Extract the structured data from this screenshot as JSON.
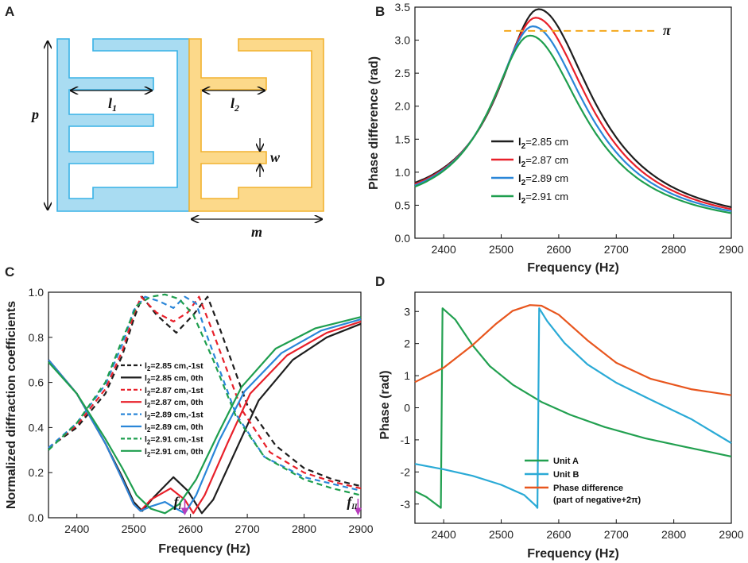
{
  "panel_labels": {
    "a": "A",
    "b": "B",
    "c": "C",
    "d": "D"
  },
  "colors": {
    "black": "#1e1e1e",
    "red": "#e8202a",
    "blue": "#2a86d8",
    "green": "#1e9e4e",
    "unitA": "#22a050",
    "unitB": "#2aaad6",
    "phase": "#e8561e",
    "pi_line": "#f4a81d",
    "cellA_fill": "#a9dcf2",
    "cellA_stroke": "#38b2e6",
    "cellB_fill": "#fcd98a",
    "cellB_stroke": "#f2b230",
    "marker": "#b83dbd"
  },
  "diagram": {
    "labels": {
      "p": "p",
      "l1": "l",
      "l1_sub": "1",
      "l2": "l",
      "l2_sub": "2",
      "w": "w",
      "m": "m"
    }
  },
  "chart_data": [
    {
      "id": "B",
      "type": "line",
      "xlabel": "Frequency (Hz)",
      "ylabel": "Phase difference (rad)",
      "xlim": [
        2350,
        2900
      ],
      "ylim": [
        0,
        3.5
      ],
      "xticks": [
        "2400",
        "2500",
        "2600",
        "2700",
        "2800",
        "2900"
      ],
      "yticks": [
        "0.0",
        "0.5",
        "1.0",
        "1.5",
        "2.0",
        "2.5",
        "3.0",
        "3.5"
      ],
      "reference_line": {
        "label": "π",
        "y": 3.14,
        "x_range": [
          2505,
          2770
        ]
      },
      "legend": {
        "position": "center-left"
      },
      "series": [
        {
          "name": "l",
          "sub": "2",
          "rest": "=2.85 cm",
          "color": "#1e1e1e",
          "peak_x": 2565,
          "peak_y": 3.47,
          "start_y": 0.84,
          "end_y": 0.47
        },
        {
          "name": "l",
          "sub": "2",
          "rest": "=2.87 cm",
          "color": "#e8202a",
          "peak_x": 2560,
          "peak_y": 3.34,
          "start_y": 0.82,
          "end_y": 0.44
        },
        {
          "name": "l",
          "sub": "2",
          "rest": "=2.89 cm",
          "color": "#2a86d8",
          "peak_x": 2555,
          "peak_y": 3.21,
          "start_y": 0.8,
          "end_y": 0.41
        },
        {
          "name": "l",
          "sub": "2",
          "rest": "=2.91 cm",
          "color": "#1e9e4e",
          "peak_x": 2550,
          "peak_y": 3.07,
          "start_y": 0.78,
          "end_y": 0.38
        }
      ]
    },
    {
      "id": "C",
      "type": "line",
      "xlabel": "Frequency (Hz)",
      "ylabel": "Normalized diffraction coefficients",
      "xlim": [
        2350,
        2900
      ],
      "ylim": [
        0,
        1.0
      ],
      "xticks": [
        "2400",
        "2500",
        "2600",
        "2700",
        "2800",
        "2900"
      ],
      "yticks": [
        "0.0",
        "0.2",
        "0.4",
        "0.6",
        "0.8",
        "1.0"
      ],
      "legend": {
        "position": "center-left"
      },
      "annotations": [
        {
          "text": "f",
          "sub": "I",
          "x": 2590
        },
        {
          "text": "f",
          "sub": "II",
          "x": 2895
        }
      ],
      "series": [
        {
          "label": "l",
          "sub": "2",
          "rest": "=2.85 cm,-1st",
          "color": "#1e1e1e",
          "dashed": true,
          "points": [
            [
              2350,
              0.31
            ],
            [
              2400,
              0.4
            ],
            [
              2450,
              0.55
            ],
            [
              2480,
              0.72
            ],
            [
              2500,
              0.88
            ],
            [
              2515,
              0.98
            ],
            [
              2540,
              0.9
            ],
            [
              2575,
              0.82
            ],
            [
              2605,
              0.9
            ],
            [
              2630,
              0.98
            ],
            [
              2650,
              0.85
            ],
            [
              2700,
              0.5
            ],
            [
              2750,
              0.32
            ],
            [
              2800,
              0.22
            ],
            [
              2850,
              0.17
            ],
            [
              2900,
              0.14
            ]
          ]
        },
        {
          "label": "l",
          "sub": "2",
          "rest": "=2.85 cm, 0th",
          "color": "#1e1e1e",
          "dashed": false,
          "points": [
            [
              2350,
              0.7
            ],
            [
              2400,
              0.55
            ],
            [
              2450,
              0.33
            ],
            [
              2480,
              0.18
            ],
            [
              2500,
              0.07
            ],
            [
              2515,
              0.03
            ],
            [
              2535,
              0.09
            ],
            [
              2570,
              0.18
            ],
            [
              2595,
              0.12
            ],
            [
              2620,
              0.02
            ],
            [
              2640,
              0.08
            ],
            [
              2680,
              0.3
            ],
            [
              2720,
              0.52
            ],
            [
              2780,
              0.7
            ],
            [
              2840,
              0.8
            ],
            [
              2900,
              0.86
            ]
          ]
        },
        {
          "label": "l",
          "sub": "2",
          "rest": "=2.87 cm,-1st",
          "color": "#e8202a",
          "dashed": true,
          "points": [
            [
              2350,
              0.31
            ],
            [
              2400,
              0.41
            ],
            [
              2450,
              0.57
            ],
            [
              2480,
              0.74
            ],
            [
              2500,
              0.9
            ],
            [
              2513,
              0.98
            ],
            [
              2540,
              0.91
            ],
            [
              2570,
              0.87
            ],
            [
              2595,
              0.91
            ],
            [
              2615,
              0.98
            ],
            [
              2640,
              0.82
            ],
            [
              2690,
              0.48
            ],
            [
              2740,
              0.29
            ],
            [
              2800,
              0.2
            ],
            [
              2850,
              0.16
            ],
            [
              2900,
              0.13
            ]
          ]
        },
        {
          "label": "l",
          "sub": "2",
          "rest": "=2.87 cm, 0th",
          "color": "#e8202a",
          "dashed": false,
          "points": [
            [
              2350,
              0.7
            ],
            [
              2400,
              0.55
            ],
            [
              2450,
              0.33
            ],
            [
              2480,
              0.17
            ],
            [
              2500,
              0.06
            ],
            [
              2512,
              0.03
            ],
            [
              2530,
              0.08
            ],
            [
              2565,
              0.13
            ],
            [
              2590,
              0.08
            ],
            [
              2605,
              0.02
            ],
            [
              2625,
              0.1
            ],
            [
              2665,
              0.33
            ],
            [
              2705,
              0.55
            ],
            [
              2770,
              0.72
            ],
            [
              2840,
              0.82
            ],
            [
              2900,
              0.87
            ]
          ]
        },
        {
          "label": "l",
          "sub": "2",
          "rest": "=2.89 cm,-1st",
          "color": "#2a86d8",
          "dashed": true,
          "points": [
            [
              2350,
              0.31
            ],
            [
              2400,
              0.42
            ],
            [
              2450,
              0.59
            ],
            [
              2480,
              0.77
            ],
            [
              2500,
              0.92
            ],
            [
              2520,
              0.98
            ],
            [
              2545,
              0.96
            ],
            [
              2570,
              0.93
            ],
            [
              2590,
              0.98
            ],
            [
              2610,
              0.95
            ],
            [
              2630,
              0.8
            ],
            [
              2680,
              0.46
            ],
            [
              2730,
              0.27
            ],
            [
              2800,
              0.18
            ],
            [
              2850,
              0.15
            ],
            [
              2900,
              0.12
            ]
          ]
        },
        {
          "label": "l",
          "sub": "2",
          "rest": "=2.89 cm, 0th",
          "color": "#2a86d8",
          "dashed": false,
          "points": [
            [
              2350,
              0.7
            ],
            [
              2400,
              0.55
            ],
            [
              2450,
              0.33
            ],
            [
              2480,
              0.17
            ],
            [
              2500,
              0.06
            ],
            [
              2512,
              0.03
            ],
            [
              2530,
              0.05
            ],
            [
              2555,
              0.07
            ],
            [
              2575,
              0.04
            ],
            [
              2590,
              0.02
            ],
            [
              2610,
              0.1
            ],
            [
              2650,
              0.34
            ],
            [
              2695,
              0.56
            ],
            [
              2760,
              0.73
            ],
            [
              2830,
              0.83
            ],
            [
              2900,
              0.88
            ]
          ]
        },
        {
          "label": "l",
          "sub": "2",
          "rest": "=2.91 cm,-1st",
          "color": "#1e9e4e",
          "dashed": true,
          "points": [
            [
              2350,
              0.3
            ],
            [
              2400,
              0.42
            ],
            [
              2450,
              0.6
            ],
            [
              2480,
              0.79
            ],
            [
              2505,
              0.94
            ],
            [
              2530,
              0.98
            ],
            [
              2555,
              0.99
            ],
            [
              2580,
              0.97
            ],
            [
              2605,
              0.9
            ],
            [
              2640,
              0.7
            ],
            [
              2680,
              0.45
            ],
            [
              2730,
              0.27
            ],
            [
              2800,
              0.17
            ],
            [
              2850,
              0.13
            ],
            [
              2900,
              0.1
            ]
          ]
        },
        {
          "label": "l",
          "sub": "2",
          "rest": "=2.91 cm, 0th",
          "color": "#1e9e4e",
          "dashed": false,
          "points": [
            [
              2350,
              0.69
            ],
            [
              2400,
              0.55
            ],
            [
              2450,
              0.35
            ],
            [
              2480,
              0.22
            ],
            [
              2505,
              0.1
            ],
            [
              2530,
              0.04
            ],
            [
              2555,
              0.02
            ],
            [
              2580,
              0.06
            ],
            [
              2610,
              0.17
            ],
            [
              2650,
              0.38
            ],
            [
              2690,
              0.58
            ],
            [
              2750,
              0.75
            ],
            [
              2820,
              0.84
            ],
            [
              2900,
              0.89
            ]
          ]
        }
      ]
    },
    {
      "id": "D",
      "type": "line",
      "xlabel": "Frequency (Hz)",
      "ylabel": "Phase (rad)",
      "xlim": [
        2350,
        2900
      ],
      "ylim": [
        -3.6,
        3.6
      ],
      "xticks": [
        "2400",
        "2500",
        "2600",
        "2700",
        "2800",
        "2900"
      ],
      "yticks": [
        "-3",
        "-2",
        "-1",
        "0",
        "1",
        "2",
        "3"
      ],
      "legend": {
        "position": "bottom-center"
      },
      "series": [
        {
          "name": "Unit A",
          "color": "#22a050",
          "points": [
            [
              2350,
              -2.6
            ],
            [
              2370,
              -2.78
            ],
            [
              2390,
              -3.05
            ],
            [
              2395,
              -3.12
            ],
            [
              2398,
              3.1
            ],
            [
              2420,
              2.75
            ],
            [
              2450,
              1.95
            ],
            [
              2480,
              1.3
            ],
            [
              2520,
              0.72
            ],
            [
              2570,
              0.18
            ],
            [
              2620,
              -0.22
            ],
            [
              2680,
              -0.6
            ],
            [
              2750,
              -0.95
            ],
            [
              2820,
              -1.22
            ],
            [
              2900,
              -1.52
            ]
          ]
        },
        {
          "name": "Unit B",
          "color": "#2aaad6",
          "points": [
            [
              2350,
              -1.75
            ],
            [
              2400,
              -1.92
            ],
            [
              2450,
              -2.12
            ],
            [
              2500,
              -2.4
            ],
            [
              2540,
              -2.72
            ],
            [
              2560,
              -3.05
            ],
            [
              2563,
              -3.12
            ],
            [
              2566,
              3.1
            ],
            [
              2580,
              2.7
            ],
            [
              2610,
              2.02
            ],
            [
              2650,
              1.35
            ],
            [
              2700,
              0.78
            ],
            [
              2760,
              0.25
            ],
            [
              2830,
              -0.35
            ],
            [
              2900,
              -1.1
            ]
          ]
        },
        {
          "name": "Phase difference",
          "note": "(part of negative+2π)",
          "color": "#e8561e",
          "points": [
            [
              2350,
              0.8
            ],
            [
              2400,
              1.25
            ],
            [
              2450,
              1.95
            ],
            [
              2490,
              2.6
            ],
            [
              2520,
              3.02
            ],
            [
              2550,
              3.2
            ],
            [
              2570,
              3.18
            ],
            [
              2600,
              2.9
            ],
            [
              2650,
              2.1
            ],
            [
              2700,
              1.4
            ],
            [
              2760,
              0.9
            ],
            [
              2830,
              0.58
            ],
            [
              2900,
              0.39
            ]
          ]
        }
      ]
    }
  ]
}
